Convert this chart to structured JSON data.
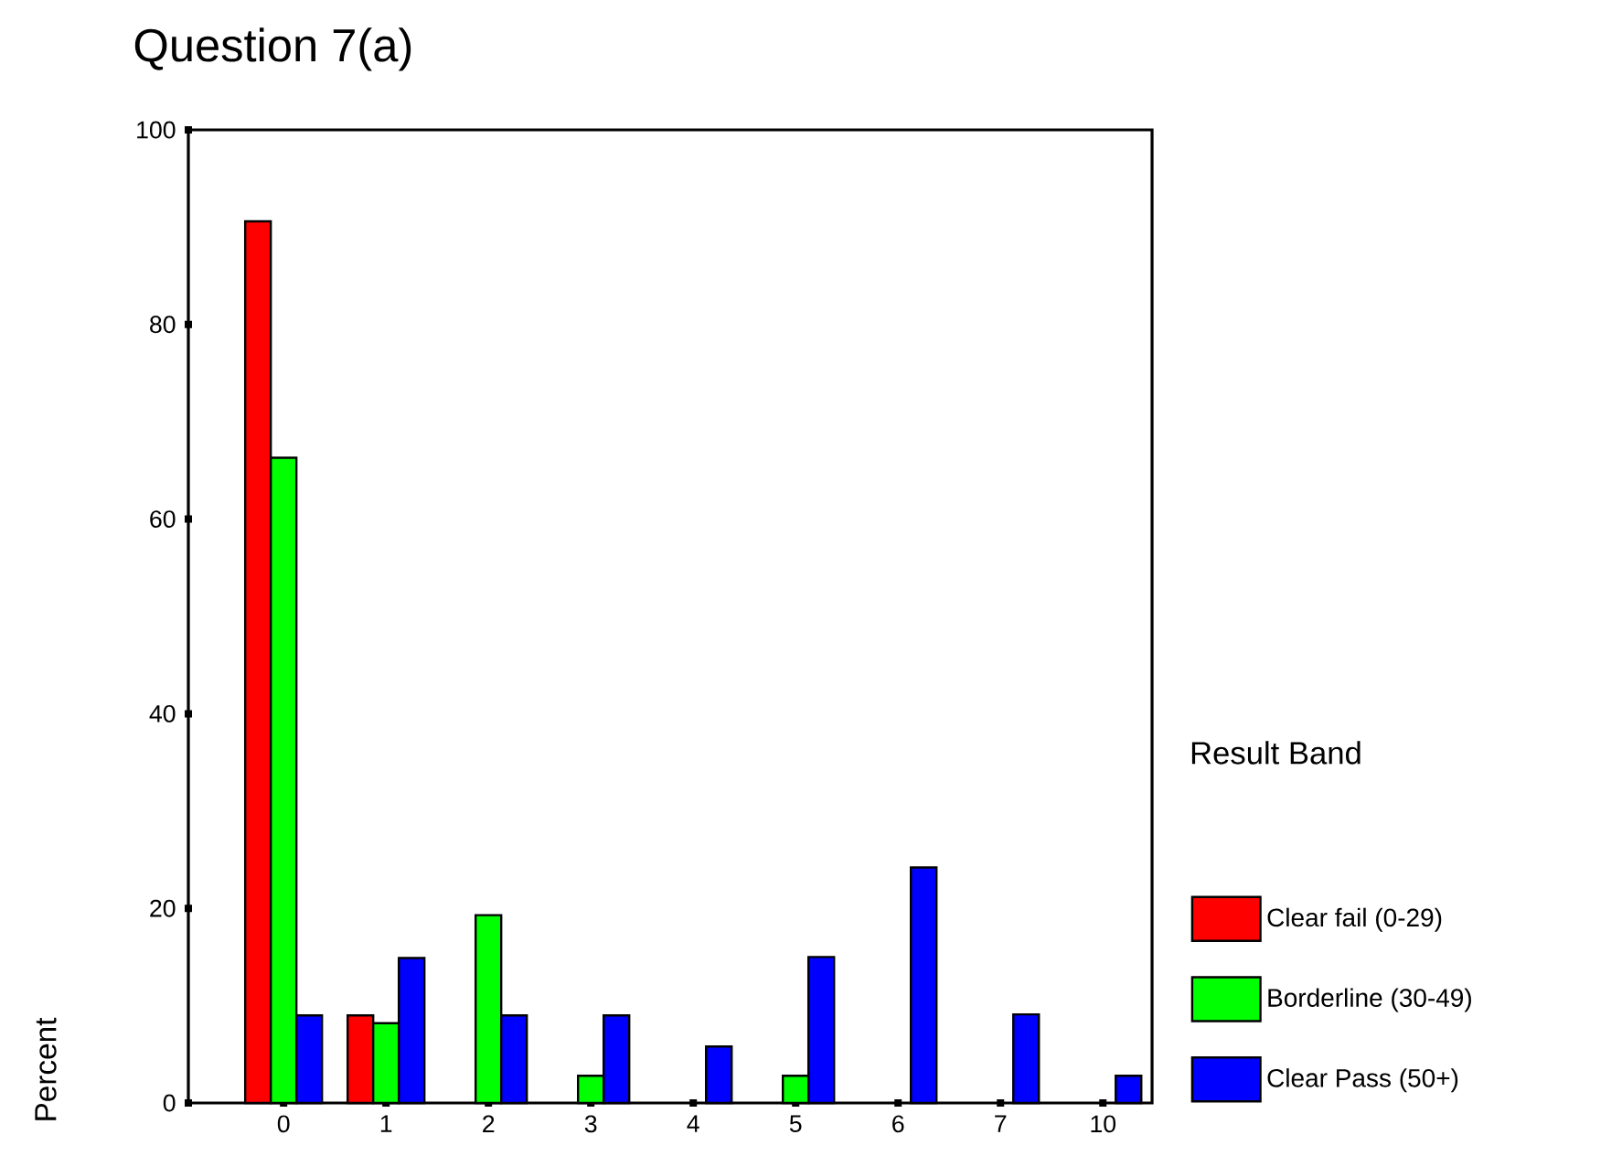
{
  "chart_data": {
    "type": "bar",
    "title": "Question 7(a)",
    "ylabel": "Percent",
    "legend_title": "Result Band",
    "categories": [
      "0",
      "1",
      "2",
      "3",
      "4",
      "5",
      "6",
      "7",
      "10"
    ],
    "series": [
      {
        "name": "Clear fail (0-29)",
        "color": "#ff0000",
        "values": [
          90.6,
          9.0,
          null,
          null,
          null,
          null,
          null,
          null,
          null
        ]
      },
      {
        "name": "Borderline (30-49)",
        "color": "#00ff00",
        "values": [
          66.3,
          8.2,
          19.3,
          2.8,
          null,
          2.8,
          null,
          null,
          null
        ]
      },
      {
        "name": "Clear Pass (50+)",
        "color": "#0000ff",
        "values": [
          9.0,
          14.9,
          9.0,
          9.0,
          5.8,
          15.0,
          24.2,
          9.1,
          2.8
        ]
      }
    ],
    "ylim": [
      0,
      100
    ],
    "yticks": [
      0,
      20,
      40,
      60,
      80,
      100
    ],
    "legend": "right"
  }
}
